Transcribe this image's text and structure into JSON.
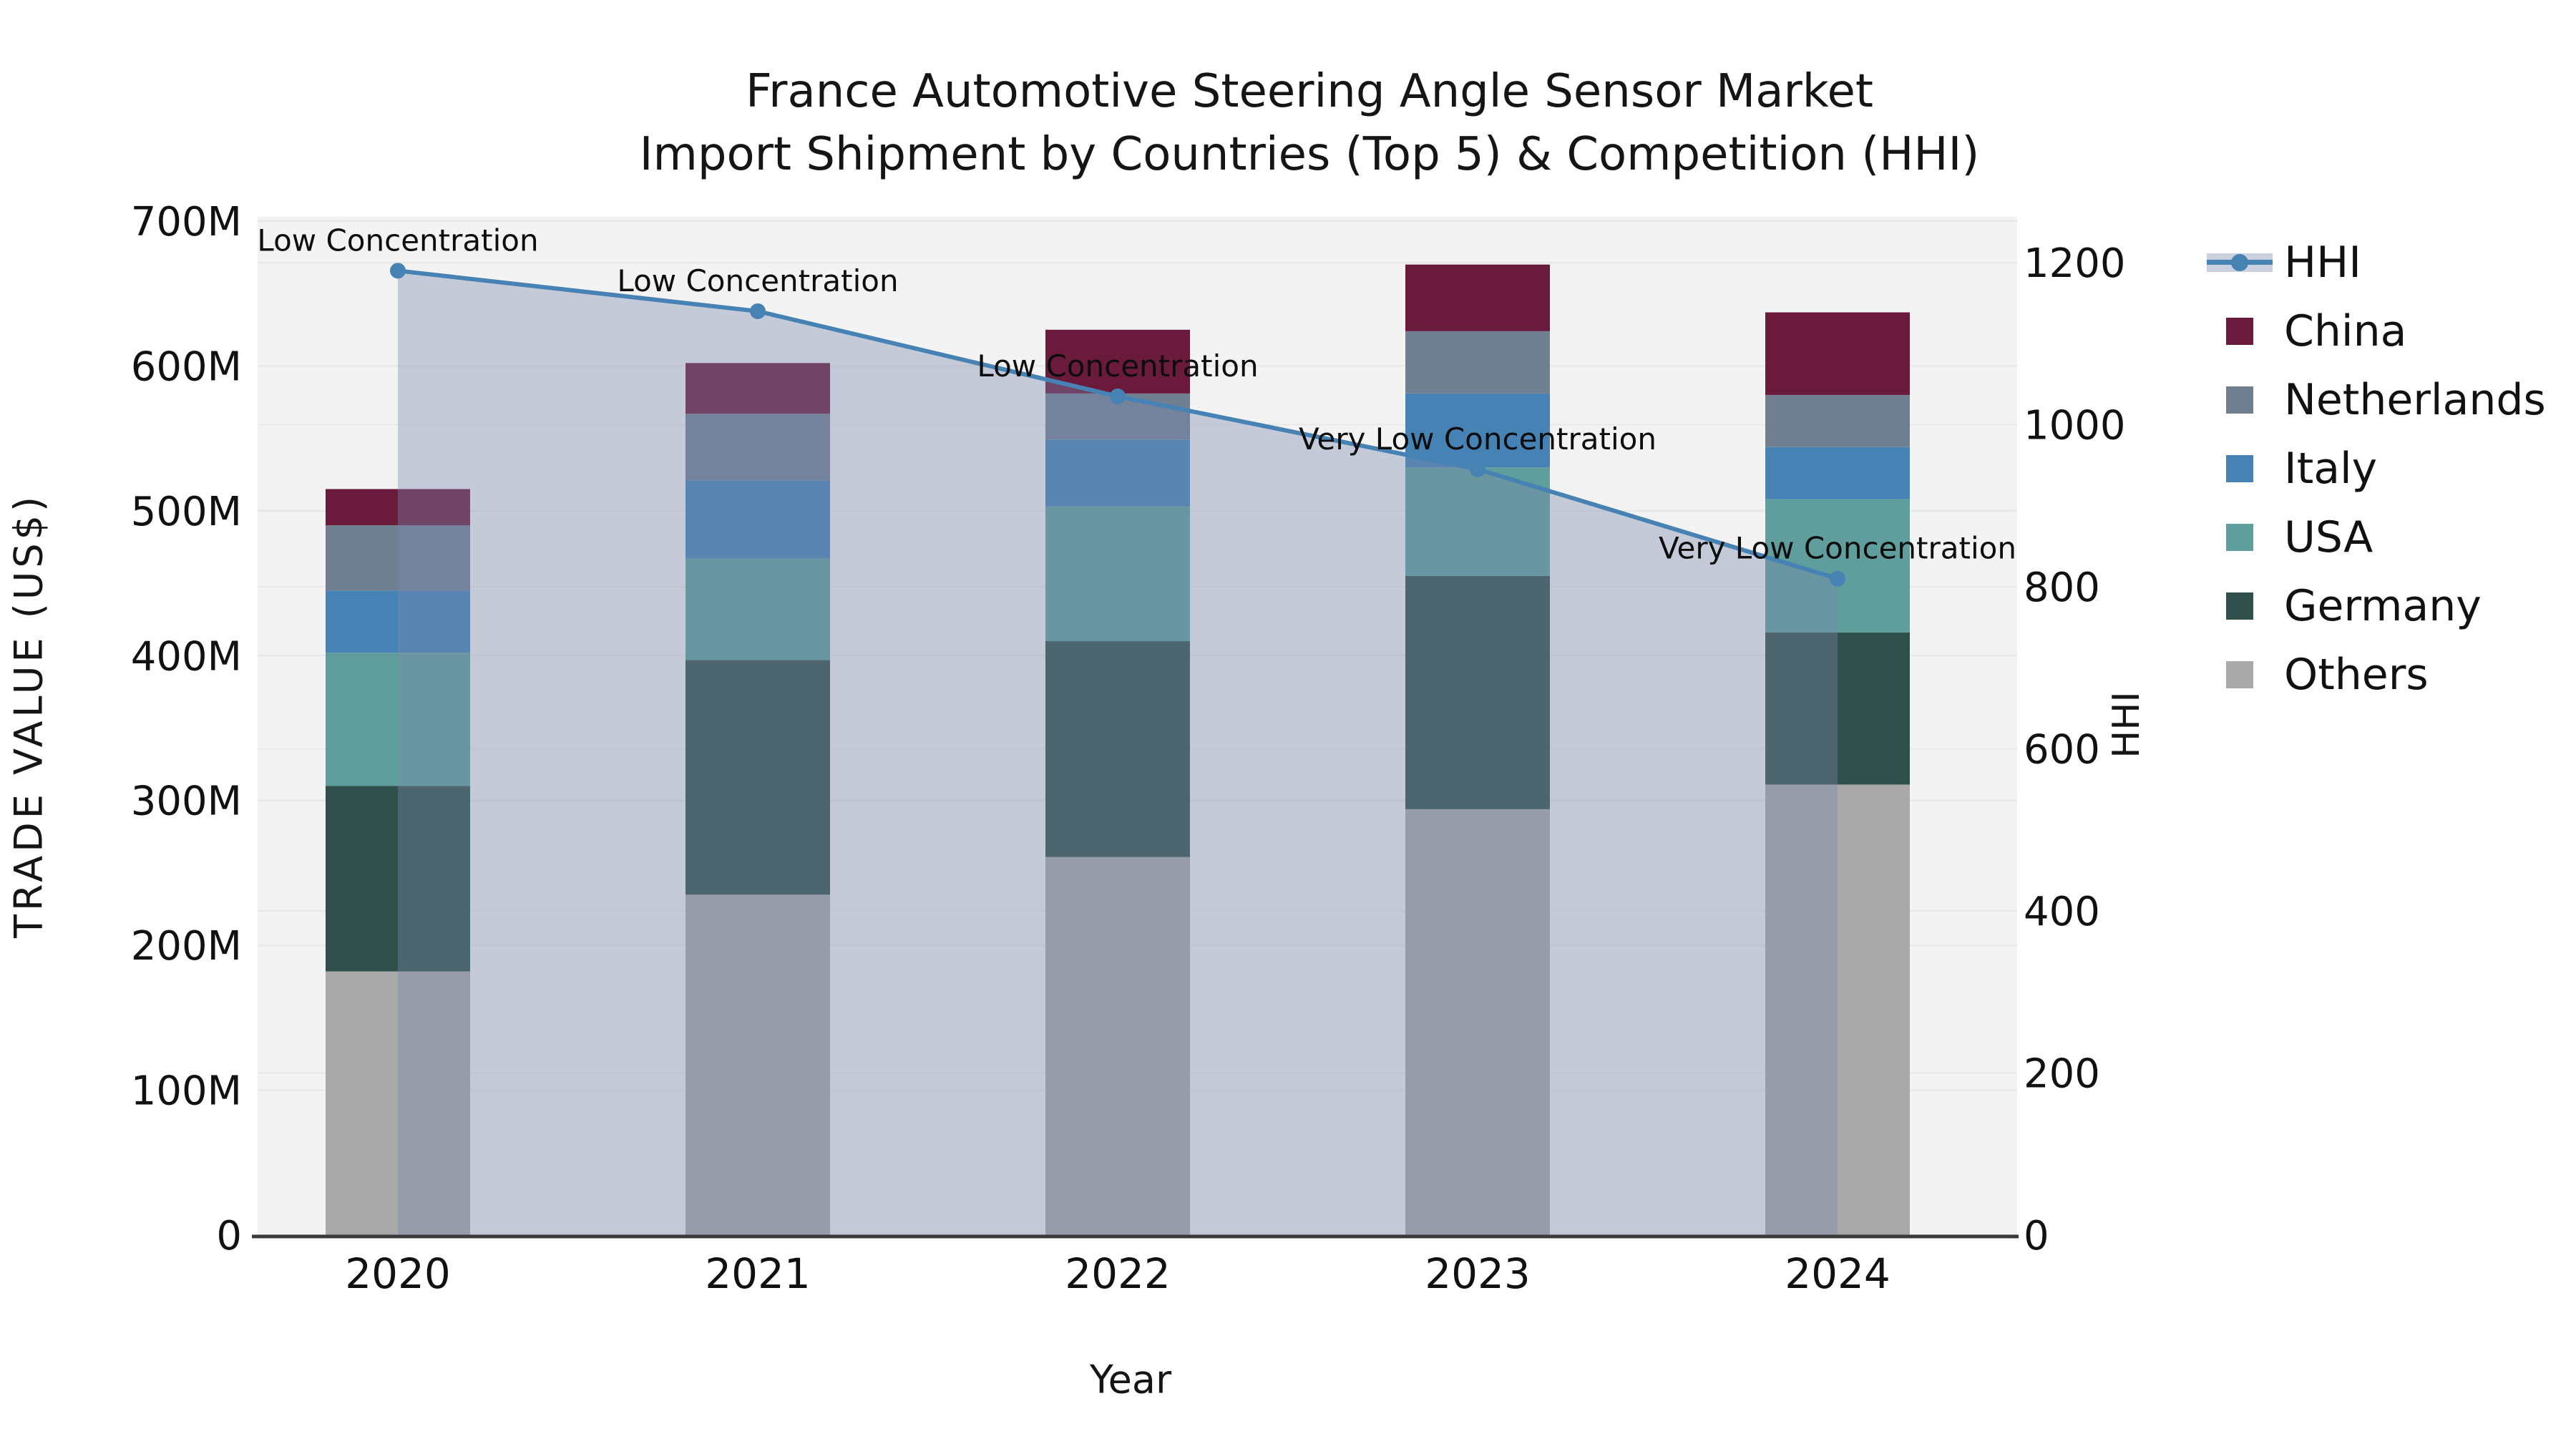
{
  "title": {
    "line1": "France Automotive Steering Angle Sensor Market",
    "line2": "Import Shipment by Countries (Top 5) & Competition (HHI)"
  },
  "axes": {
    "x_label": "Year",
    "y_left_label": "TRADE VALUE (US$)",
    "y_right_label": "HHI",
    "y_left_ticks": [
      "0",
      "100M",
      "200M",
      "300M",
      "400M",
      "500M",
      "600M",
      "700M"
    ],
    "y_left_tick_values": [
      0,
      100,
      200,
      300,
      400,
      500,
      600,
      700
    ],
    "y_right_ticks": [
      "0",
      "200",
      "400",
      "600",
      "800",
      "1000",
      "1200"
    ],
    "y_right_tick_values": [
      0,
      200,
      400,
      600,
      800,
      1000,
      1200
    ]
  },
  "chart_data": {
    "type": "bar",
    "subtype": "stacked-bars-with-line-overlay",
    "categories": [
      "2020",
      "2021",
      "2022",
      "2023",
      "2024"
    ],
    "unit_left": "US$ millions",
    "ylim_left": [
      0,
      700
    ],
    "ylim_right": [
      0,
      1255
    ],
    "grid": true,
    "series": [
      {
        "name": "Others",
        "color": "#a9a9a9",
        "values": [
          182,
          235,
          261,
          294,
          311
        ]
      },
      {
        "name": "Germany",
        "color": "#2f4f4a",
        "values": [
          128,
          162,
          149,
          161,
          105
        ]
      },
      {
        "name": "USA",
        "color": "#5f9e9c",
        "values": [
          92,
          70,
          93,
          75,
          92
        ]
      },
      {
        "name": "Italy",
        "color": "#4682b4",
        "values": [
          43,
          54,
          46,
          51,
          36
        ]
      },
      {
        "name": "Netherlands",
        "color": "#708090",
        "values": [
          45,
          46,
          32,
          43,
          36
        ]
      },
      {
        "name": "China",
        "color": "#6a1a3b",
        "values": [
          25,
          35,
          44,
          46,
          57
        ]
      }
    ],
    "totals": [
      515,
      602,
      625,
      670,
      637
    ],
    "line_series": {
      "name": "HHI",
      "color": "#4682b4",
      "area_color": "rgba(124,138,174,0.38)",
      "values": [
        1190,
        1140,
        1035,
        945,
        810
      ]
    },
    "annotations": [
      {
        "category": "2020",
        "text": "Low Concentration"
      },
      {
        "category": "2021",
        "text": "Low Concentration"
      },
      {
        "category": "2022",
        "text": "Low Concentration"
      },
      {
        "category": "2023",
        "text": "Very Low Concentration"
      },
      {
        "category": "2024",
        "text": "Very Low Concentration"
      }
    ],
    "legend": [
      {
        "label": "HHI",
        "type": "line",
        "color": "#4682b4"
      },
      {
        "label": "China",
        "type": "patch",
        "color": "#6a1a3b"
      },
      {
        "label": "Netherlands",
        "type": "patch",
        "color": "#708090"
      },
      {
        "label": "Italy",
        "type": "patch",
        "color": "#4682b4"
      },
      {
        "label": "USA",
        "type": "patch",
        "color": "#5f9e9c"
      },
      {
        "label": "Germany",
        "type": "patch",
        "color": "#2f4f4a"
      },
      {
        "label": "Others",
        "type": "patch",
        "color": "#a9a9a9"
      }
    ],
    "colors": {
      "plot_background": "#f2f3f2",
      "gridline": "#e7e8e8",
      "axis_line": "#3a3a3a",
      "text": "#111111"
    }
  }
}
